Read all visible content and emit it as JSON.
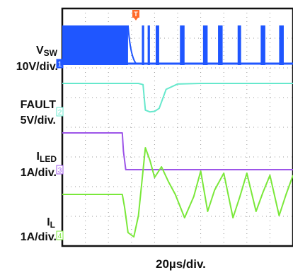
{
  "chart_data": {
    "type": "line",
    "title": "",
    "timebase": "20µs/div.",
    "grid": true,
    "divisions": {
      "x": 10,
      "y": 8
    },
    "trigger_marker": "T",
    "channels": [
      {
        "id": 1,
        "marker": "1",
        "name": "V",
        "name_sub": "SW",
        "scale": "10V/div.",
        "color": "#1f56ff",
        "description_points": [
          {
            "t_div": 0.0,
            "state": "switching"
          },
          {
            "t_div": 2.8,
            "state": "switching"
          },
          {
            "t_div": 2.9,
            "state": "decay"
          },
          {
            "t_div": 3.2,
            "state": "low"
          }
        ],
        "burst_windows_div": [
          [
            0.0,
            2.85
          ],
          [
            3.45,
            3.55
          ],
          [
            3.7,
            3.8
          ],
          [
            4.05,
            4.2
          ],
          [
            5.1,
            5.3
          ],
          [
            6.1,
            6.3
          ],
          [
            6.75,
            6.95
          ],
          [
            7.6,
            7.75
          ],
          [
            8.6,
            8.8
          ],
          [
            9.4,
            9.6
          ]
        ]
      },
      {
        "id": 2,
        "marker": "2",
        "name": "FAULT",
        "name_sub": "",
        "scale": "5V/div.",
        "color": "#66e8cc",
        "x_div": [
          0,
          3.3,
          3.5,
          3.6,
          3.8,
          4.0,
          4.2,
          4.5,
          5.0,
          6.0,
          10.0
        ],
        "y_v": [
          5,
          5,
          4.8,
          0.5,
          0.2,
          0.3,
          0.8,
          4.0,
          4.9,
          5.0,
          5.0
        ]
      },
      {
        "id": 3,
        "marker": "3",
        "name": "I",
        "name_sub": "LED",
        "scale": "1A/div.",
        "color": "#9d55e8",
        "x_div": [
          0,
          2.6,
          2.65,
          2.75,
          10.0
        ],
        "y_a": [
          1.2,
          1.2,
          0.6,
          0.0,
          0.0
        ]
      },
      {
        "id": 4,
        "marker": "4",
        "name": "I",
        "name_sub": "L",
        "scale": "1A/div.",
        "color": "#7ae83a",
        "x_div": [
          0,
          2.6,
          2.7,
          2.85,
          3.1,
          3.3,
          3.6,
          3.8,
          4.0,
          4.3,
          4.6,
          4.9,
          5.3,
          5.7,
          6.0,
          6.3,
          6.6,
          7.0,
          7.4,
          7.7,
          8.0,
          8.4,
          8.7,
          9.0,
          9.4,
          9.7,
          10.0
        ],
        "y_a": [
          0,
          0,
          -0.6,
          -1.8,
          -2.0,
          -1.0,
          2.2,
          1.6,
          0.8,
          1.3,
          0.6,
          0.0,
          -1.1,
          -0.1,
          1.1,
          -0.8,
          0.2,
          1.0,
          -1.1,
          -0.1,
          1.0,
          -0.8,
          0.1,
          0.9,
          -1.0,
          0.0,
          0.9
        ]
      }
    ]
  },
  "labels": {
    "ch1_name": "V",
    "ch1_sub": "SW",
    "ch1_scale": "10V/div.",
    "ch2_name": "FAULT",
    "ch2_scale": "5V/div.",
    "ch3_name": "I",
    "ch3_sub": "LED",
    "ch3_scale": "1A/div.",
    "ch4_name": "I",
    "ch4_sub": "L",
    "ch4_scale": "1A/div.",
    "timebase": "20µs/div."
  },
  "markers": {
    "trigger": "T",
    "ch1": "1",
    "ch2": "2",
    "ch3": "3",
    "ch4": "4"
  }
}
